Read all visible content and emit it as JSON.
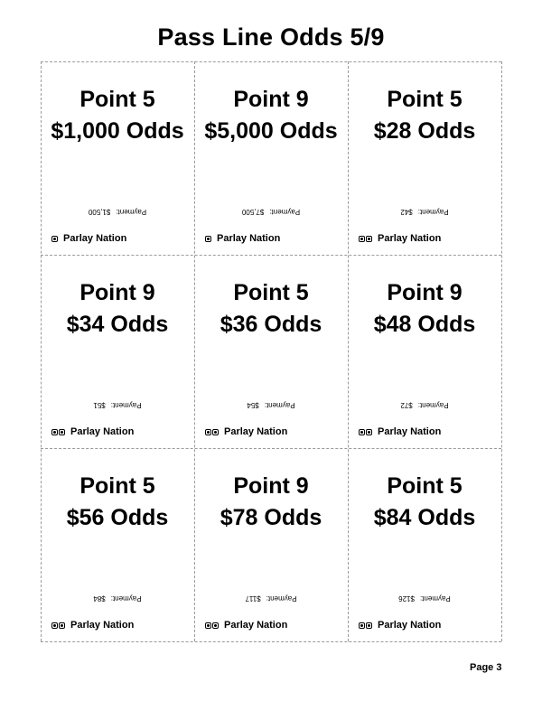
{
  "title": "Pass Line Odds 5/9",
  "payment_label": "Payment:",
  "brand": "Parlay Nation",
  "page": "Page 3",
  "cards": [
    {
      "point": "Point 5",
      "odds": "$1,000 Odds",
      "payment": "$1,500",
      "dice": 1
    },
    {
      "point": "Point 9",
      "odds": "$5,000 Odds",
      "payment": "$7,500",
      "dice": 1
    },
    {
      "point": "Point 5",
      "odds": "$28 Odds",
      "payment": "$42",
      "dice": 2
    },
    {
      "point": "Point 9",
      "odds": "$34 Odds",
      "payment": "$51",
      "dice": 2
    },
    {
      "point": "Point 5",
      "odds": "$36 Odds",
      "payment": "$54",
      "dice": 2
    },
    {
      "point": "Point 9",
      "odds": "$48 Odds",
      "payment": "$72",
      "dice": 2
    },
    {
      "point": "Point 5",
      "odds": "$56 Odds",
      "payment": "$84",
      "dice": 2
    },
    {
      "point": "Point 9",
      "odds": "$78 Odds",
      "payment": "$117",
      "dice": 2
    },
    {
      "point": "Point 5",
      "odds": "$84 Odds",
      "payment": "$126",
      "dice": 2
    }
  ]
}
